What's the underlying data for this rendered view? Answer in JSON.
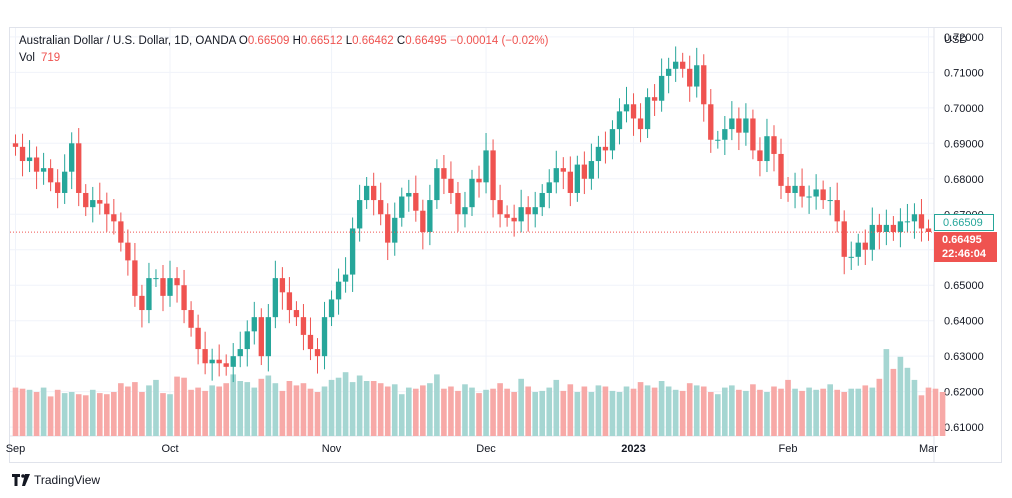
{
  "legend": {
    "symbol": "Australian Dollar / U.S. Dollar, 1D, OANDA",
    "o_label": "O",
    "o": "0.66509",
    "h_label": "H",
    "h": "0.66512",
    "l_label": "L",
    "l": "0.66462",
    "c_label": "C",
    "c": "0.66495",
    "change": "−0.00014 (−0.02%)"
  },
  "volume": {
    "label": "Vol",
    "value": "719"
  },
  "currency": "USD",
  "price_tags": {
    "high": "0.66509",
    "current": "0.66495",
    "countdown": "22:46:04"
  },
  "brand": {
    "name": "TradingView"
  },
  "colors": {
    "up": "#26a69a",
    "down": "#ef5350",
    "up_vol": "#a5d6d2",
    "down_vol": "#f7a9a7",
    "grid": "#f0f3fa"
  },
  "chart_data": {
    "type": "candlestick",
    "y_axis": {
      "range": [
        0.6075,
        0.7225
      ],
      "ticks": [
        "0.61000",
        "0.62000",
        "0.63000",
        "0.64000",
        "0.65000",
        "0.66000",
        "0.67000",
        "0.68000",
        "0.69000",
        "0.70000",
        "0.71000",
        "0.72000"
      ]
    },
    "x_axis": {
      "labels": [
        {
          "text": "Sep",
          "index": 0
        },
        {
          "text": "Oct",
          "index": 22
        },
        {
          "text": "Nov",
          "index": 45
        },
        {
          "text": "Dec",
          "index": 67
        },
        {
          "text": "2023",
          "index": 88,
          "bold": true
        },
        {
          "text": "Feb",
          "index": 110
        },
        {
          "text": "Mar",
          "index": 130
        }
      ]
    },
    "close_series": [
      0.689,
      0.685,
      0.686,
      0.682,
      0.683,
      0.679,
      0.676,
      0.682,
      0.69,
      0.676,
      0.672,
      0.674,
      0.673,
      0.67,
      0.668,
      0.662,
      0.657,
      0.647,
      0.643,
      0.652,
      0.652,
      0.647,
      0.652,
      0.65,
      0.643,
      0.638,
      0.632,
      0.628,
      0.629,
      0.628,
      0.627,
      0.63,
      0.632,
      0.637,
      0.641,
      0.63,
      0.641,
      0.652,
      0.648,
      0.643,
      0.641,
      0.636,
      0.632,
      0.63,
      0.641,
      0.646,
      0.651,
      0.653,
      0.666,
      0.674,
      0.678,
      0.674,
      0.67,
      0.662,
      0.669,
      0.675,
      0.676,
      0.671,
      0.665,
      0.674,
      0.683,
      0.68,
      0.676,
      0.67,
      0.672,
      0.68,
      0.679,
      0.688,
      0.674,
      0.67,
      0.669,
      0.668,
      0.672,
      0.67,
      0.672,
      0.676,
      0.679,
      0.683,
      0.682,
      0.676,
      0.684,
      0.68,
      0.685,
      0.689,
      0.688,
      0.694,
      0.699,
      0.701,
      0.697,
      0.694,
      0.703,
      0.702,
      0.709,
      0.711,
      0.713,
      0.711,
      0.706,
      0.712,
      0.701,
      0.691,
      0.691,
      0.694,
      0.697,
      0.693,
      0.697,
      0.688,
      0.685,
      0.692,
      0.687,
      0.678,
      0.676,
      0.678,
      0.675,
      0.675,
      0.677,
      0.674,
      0.674,
      0.668,
      0.658,
      0.658,
      0.662,
      0.66,
      0.667,
      0.665,
      0.667,
      0.665,
      0.668,
      0.668,
      0.67,
      0.666,
      0.665
    ],
    "volume_series": [
      0.44,
      0.43,
      0.42,
      0.4,
      0.44,
      0.36,
      0.42,
      0.39,
      0.4,
      0.38,
      0.37,
      0.42,
      0.39,
      0.38,
      0.4,
      0.48,
      0.45,
      0.49,
      0.4,
      0.46,
      0.51,
      0.39,
      0.38,
      0.54,
      0.53,
      0.42,
      0.44,
      0.41,
      0.46,
      0.45,
      0.48,
      0.56,
      0.5,
      0.49,
      0.44,
      0.52,
      0.55,
      0.48,
      0.41,
      0.5,
      0.46,
      0.48,
      0.43,
      0.4,
      0.45,
      0.51,
      0.53,
      0.58,
      0.49,
      0.55,
      0.5,
      0.5,
      0.48,
      0.45,
      0.47,
      0.38,
      0.44,
      0.43,
      0.46,
      0.48,
      0.56,
      0.43,
      0.45,
      0.41,
      0.47,
      0.44,
      0.39,
      0.42,
      0.43,
      0.48,
      0.43,
      0.4,
      0.52,
      0.45,
      0.4,
      0.41,
      0.44,
      0.51,
      0.41,
      0.47,
      0.4,
      0.45,
      0.4,
      0.46,
      0.45,
      0.41,
      0.4,
      0.45,
      0.43,
      0.49,
      0.46,
      0.44,
      0.5,
      0.45,
      0.42,
      0.41,
      0.48,
      0.46,
      0.45,
      0.4,
      0.38,
      0.44,
      0.46,
      0.42,
      0.41,
      0.47,
      0.42,
      0.4,
      0.45,
      0.43,
      0.51,
      0.43,
      0.41,
      0.44,
      0.42,
      0.43,
      0.47,
      0.42,
      0.4,
      0.43,
      0.43,
      0.46,
      0.44,
      0.52,
      0.79,
      0.61,
      0.72,
      0.62,
      0.51,
      0.37,
      0.44,
      0.43,
      0.4
    ]
  }
}
